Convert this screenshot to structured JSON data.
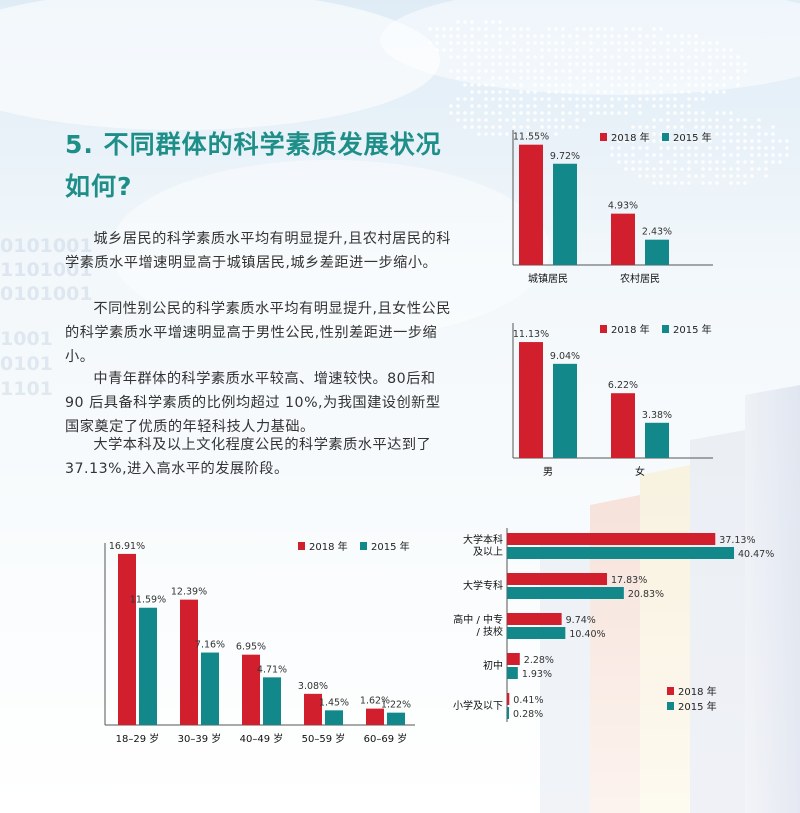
{
  "colors": {
    "y2018": "#d11f2e",
    "y2015": "#12888a",
    "title": "#1e8f88"
  },
  "title": {
    "line1": "5. 不同群体的科学素质发展状况",
    "line2": "如何?"
  },
  "paragraphs": [
    "城乡居民的科学素质水平均有明显提升,且农村居民的科学素质水平增速明显高于城镇居民,城乡差距进一步缩小。",
    "不同性别公民的科学素质水平均有明显提升,且女性公民的科学素质水平增速明显高于男性公民,性别差距进一步缩小。",
    "中青年群体的科学素质水平较高、增速较快。80后和 90 后具备科学素质的比例均超过 10%,为我国建设创新型国家奠定了优质的年轻科技人力基础。",
    "大学本科及以上文化程度公民的科学素质水平达到了 37.13%,进入高水平的发展阶段。"
  ],
  "chart_data": [
    {
      "id": "urban-rural",
      "type": "bar",
      "categories": [
        "城镇居民",
        "农村居民"
      ],
      "series": [
        {
          "name": "2018 年",
          "values": [
            11.55,
            4.93
          ],
          "labels": [
            "11.55%",
            "4.93%"
          ]
        },
        {
          "name": "2015 年",
          "values": [
            9.72,
            2.43
          ],
          "labels": [
            "9.72%",
            "2.43%"
          ]
        }
      ],
      "ylim": [
        0,
        12
      ],
      "legend": "top-right"
    },
    {
      "id": "gender",
      "type": "bar",
      "categories": [
        "男",
        "女"
      ],
      "series": [
        {
          "name": "2018 年",
          "values": [
            11.13,
            6.22
          ],
          "labels": [
            "11.13%",
            "6.22%"
          ]
        },
        {
          "name": "2015 年",
          "values": [
            9.04,
            3.38
          ],
          "labels": [
            "9.04%",
            "3.38%"
          ]
        }
      ],
      "ylim": [
        0,
        12
      ],
      "legend": "top-right"
    },
    {
      "id": "age",
      "type": "bar",
      "categories": [
        "18–29 岁",
        "30–39 岁",
        "40–49 岁",
        "50–59 岁",
        "60–69 岁"
      ],
      "series": [
        {
          "name": "2018 年",
          "values": [
            16.91,
            12.39,
            6.95,
            3.08,
            1.62
          ],
          "labels": [
            "16.91%",
            "12.39%",
            "6.95%",
            "3.08%",
            "1.62%"
          ]
        },
        {
          "name": "2015 年",
          "values": [
            11.59,
            7.16,
            4.71,
            1.45,
            1.22
          ],
          "labels": [
            "11.59%",
            "7.16%",
            "4.71%",
            "1.45%",
            "1.22%"
          ]
        }
      ],
      "ylim": [
        0,
        17
      ],
      "legend": "top-right"
    },
    {
      "id": "education",
      "type": "bar",
      "orientation": "horizontal",
      "categories": [
        "大学本科\n及以上",
        "大学专科",
        "高中 / 中专\n/ 技校",
        "初中",
        "小学及以下"
      ],
      "series": [
        {
          "name": "2018 年",
          "values": [
            37.13,
            17.83,
            9.74,
            2.28,
            0.41
          ],
          "labels": [
            "37.13%",
            "17.83%",
            "9.74%",
            "2.28%",
            "0.41%"
          ]
        },
        {
          "name": "2015 年",
          "values": [
            40.47,
            20.83,
            10.4,
            1.93,
            0.28
          ],
          "labels": [
            "40.47%",
            "20.83%",
            "10.40%",
            "1.93%",
            "0.28%"
          ]
        }
      ],
      "xlim": [
        0,
        41
      ],
      "legend": "bottom-right"
    }
  ]
}
